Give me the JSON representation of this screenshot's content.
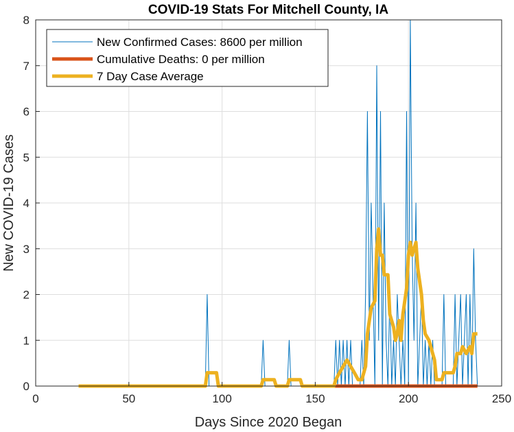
{
  "chart_data": {
    "type": "line",
    "title": "COVID-19 Stats For Mitchell County, IA",
    "xlabel": "Days Since 2020 Began",
    "ylabel": "New COVID-19 Cases",
    "xlim": [
      0,
      250
    ],
    "ylim": [
      0,
      8
    ],
    "xticks": [
      0,
      50,
      100,
      150,
      200,
      250
    ],
    "yticks": [
      0,
      1,
      2,
      3,
      4,
      5,
      6,
      7,
      8
    ],
    "grid": true,
    "legend_position": "top-left",
    "series": [
      {
        "name": "New Confirmed Cases: 8600 per million",
        "color": "#0072BD",
        "line_width": "thin",
        "points": [
          [
            23,
            0
          ],
          [
            91,
            0
          ],
          [
            92,
            2
          ],
          [
            93,
            0
          ],
          [
            121,
            0
          ],
          [
            122,
            1
          ],
          [
            123,
            0
          ],
          [
            135,
            0
          ],
          [
            136,
            1
          ],
          [
            137,
            0
          ],
          [
            160,
            0
          ],
          [
            161,
            1
          ],
          [
            162,
            0
          ],
          [
            163,
            1
          ],
          [
            164,
            0
          ],
          [
            165,
            1
          ],
          [
            166,
            0
          ],
          [
            167,
            1
          ],
          [
            168,
            0
          ],
          [
            169,
            1
          ],
          [
            170,
            0
          ],
          [
            174,
            0
          ],
          [
            175,
            1
          ],
          [
            176,
            0
          ],
          [
            177,
            2
          ],
          [
            178,
            6
          ],
          [
            179,
            1
          ],
          [
            180,
            4
          ],
          [
            181,
            2
          ],
          [
            182,
            0
          ],
          [
            183,
            7
          ],
          [
            184,
            1
          ],
          [
            185,
            6
          ],
          [
            186,
            0
          ],
          [
            187,
            4
          ],
          [
            188,
            1
          ],
          [
            189,
            0
          ],
          [
            190,
            2
          ],
          [
            191,
            0
          ],
          [
            192,
            1
          ],
          [
            193,
            0
          ],
          [
            194,
            2
          ],
          [
            195,
            1
          ],
          [
            196,
            0
          ],
          [
            197,
            1
          ],
          [
            198,
            0
          ],
          [
            199,
            6
          ],
          [
            200,
            0
          ],
          [
            201,
            8
          ],
          [
            202,
            3
          ],
          [
            203,
            1
          ],
          [
            204,
            4
          ],
          [
            205,
            0
          ],
          [
            206,
            1
          ],
          [
            207,
            2
          ],
          [
            208,
            0
          ],
          [
            209,
            1
          ],
          [
            210,
            0
          ],
          [
            211,
            1
          ],
          [
            212,
            0
          ],
          [
            213,
            1
          ],
          [
            214,
            0
          ],
          [
            218,
            0
          ],
          [
            219,
            2
          ],
          [
            220,
            0
          ],
          [
            224,
            0
          ],
          [
            225,
            2
          ],
          [
            226,
            0
          ],
          [
            228,
            2
          ],
          [
            229,
            0
          ],
          [
            230,
            1
          ],
          [
            231,
            2
          ],
          [
            232,
            0
          ],
          [
            233,
            2
          ],
          [
            234,
            0
          ],
          [
            235,
            3
          ],
          [
            236,
            1
          ],
          [
            237,
            0
          ]
        ]
      },
      {
        "name": "Cumulative Deaths: 0 per million",
        "color": "#D95319",
        "line_width": "thick",
        "points": [
          [
            160,
            0
          ],
          [
            237,
            0
          ]
        ]
      },
      {
        "name": "7 Day Case Average",
        "color": "#EDB120",
        "line_width": "thick",
        "points": [
          [
            23,
            0
          ],
          [
            91,
            0
          ],
          [
            92,
            0.29
          ],
          [
            97,
            0.29
          ],
          [
            98,
            0
          ],
          [
            121,
            0
          ],
          [
            122,
            0.14
          ],
          [
            128,
            0.14
          ],
          [
            129,
            0
          ],
          [
            135,
            0
          ],
          [
            136,
            0.14
          ],
          [
            142,
            0.14
          ],
          [
            143,
            0
          ],
          [
            160,
            0
          ],
          [
            161,
            0.14
          ],
          [
            163,
            0.29
          ],
          [
            165,
            0.43
          ],
          [
            167,
            0.57
          ],
          [
            169,
            0.43
          ],
          [
            171,
            0.29
          ],
          [
            173,
            0.14
          ],
          [
            175,
            0.14
          ],
          [
            177,
            0.43
          ],
          [
            178,
            1.14
          ],
          [
            180,
            1.71
          ],
          [
            182,
            1.86
          ],
          [
            183,
            3.0
          ],
          [
            184,
            3.43
          ],
          [
            185,
            2.86
          ],
          [
            186,
            2.86
          ],
          [
            187,
            2.43
          ],
          [
            189,
            2.43
          ],
          [
            190,
            1.57
          ],
          [
            192,
            1.29
          ],
          [
            193,
            1.0
          ],
          [
            194,
            1.14
          ],
          [
            195,
            1.43
          ],
          [
            196,
            1.0
          ],
          [
            197,
            1.57
          ],
          [
            199,
            2.14
          ],
          [
            200,
            2.86
          ],
          [
            201,
            3.14
          ],
          [
            202,
            2.86
          ],
          [
            203,
            3.0
          ],
          [
            204,
            3.14
          ],
          [
            205,
            2.57
          ],
          [
            207,
            2.0
          ],
          [
            208,
            1.43
          ],
          [
            209,
            1.14
          ],
          [
            211,
            1.0
          ],
          [
            213,
            0.71
          ],
          [
            214,
            0.57
          ],
          [
            215,
            0.14
          ],
          [
            218,
            0.14
          ],
          [
            219,
            0.29
          ],
          [
            224,
            0.29
          ],
          [
            225,
            0.43
          ],
          [
            226,
            0.71
          ],
          [
            228,
            0.71
          ],
          [
            229,
            0.86
          ],
          [
            231,
            0.71
          ],
          [
            233,
            0.86
          ],
          [
            234,
            0.71
          ],
          [
            235,
            1.14
          ],
          [
            237,
            1.14
          ]
        ]
      }
    ]
  }
}
